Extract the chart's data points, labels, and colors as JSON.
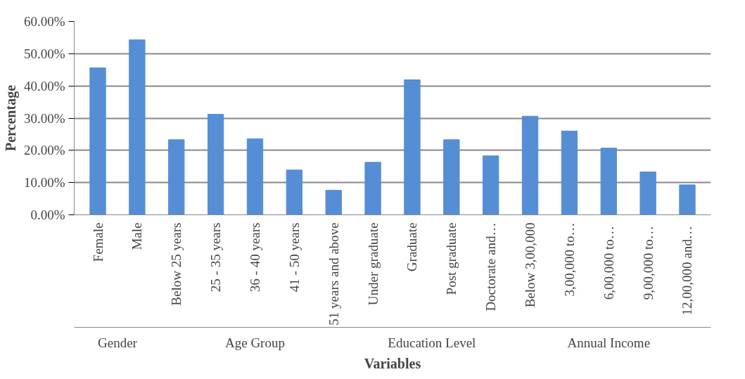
{
  "chart_data": {
    "type": "bar",
    "xlabel": "Variables",
    "ylabel": "Percentage",
    "categories": [
      "Female",
      "Male",
      "Below 25 years",
      "25 - 35 years",
      "36 - 40 years",
      "41 - 50 years",
      "51 years and above",
      "Under graduate",
      "Graduate",
      "Post graduate",
      "Doctorate and…",
      "Below 3,00,000",
      "3,00,000 to…",
      "6,00,000  to…",
      "9,00,000  to…",
      "12,00,000  and…"
    ],
    "values": [
      45.6,
      54.3,
      23.3,
      31.2,
      23.6,
      13.9,
      7.6,
      16.3,
      41.9,
      23.3,
      18.3,
      30.6,
      26.0,
      20.7,
      13.3,
      9.3
    ],
    "color": "#558ed5",
    "ylim": [
      0,
      60
    ],
    "yticks": [
      {
        "value": 0,
        "label": "0.00%"
      },
      {
        "value": 10,
        "label": "10.00%"
      },
      {
        "value": 20,
        "label": "20.00%"
      },
      {
        "value": 30,
        "label": "30.00%"
      },
      {
        "value": 40,
        "label": "40.00%"
      },
      {
        "value": 50,
        "label": "50.00%"
      },
      {
        "value": 60,
        "label": "60.00%"
      }
    ],
    "grid": "y",
    "annotations": [
      "Gender",
      "Age Group",
      "Education Level",
      "Annual Income"
    ]
  }
}
